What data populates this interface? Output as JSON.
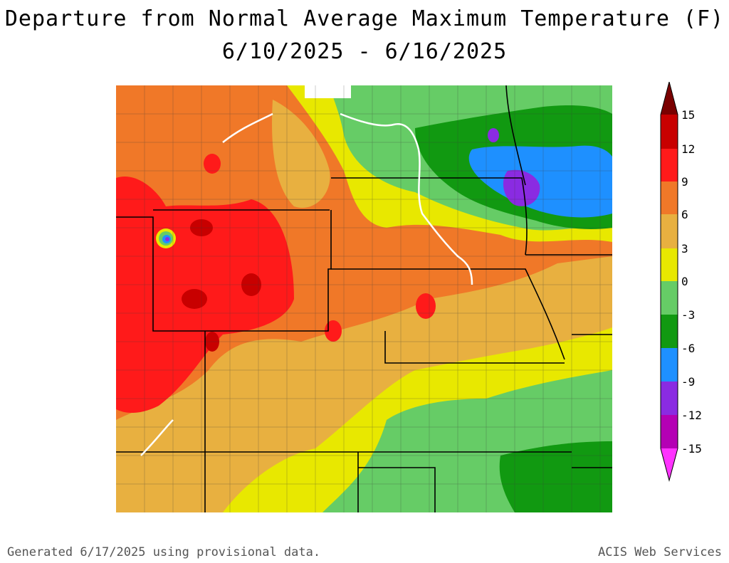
{
  "title": {
    "line1": "Departure from Normal Average Maximum Temperature (F)",
    "line2": "6/10/2025 - 6/16/2025"
  },
  "legend": {
    "labels": [
      "15",
      "12",
      "9",
      "6",
      "3",
      "0",
      "-3",
      "-6",
      "-9",
      "-12",
      "-15"
    ],
    "colors": [
      "#7a0000",
      "#c80000",
      "#ff1a1a",
      "#f07828",
      "#e8b040",
      "#e8e800",
      "#66cc66",
      "#119911",
      "#1e90ff",
      "#8a2be2",
      "#b400b4",
      "#ff33ff"
    ]
  },
  "footer": {
    "left": "Generated 6/17/2025 using provisional data.",
    "right": "ACIS Web Services"
  }
}
